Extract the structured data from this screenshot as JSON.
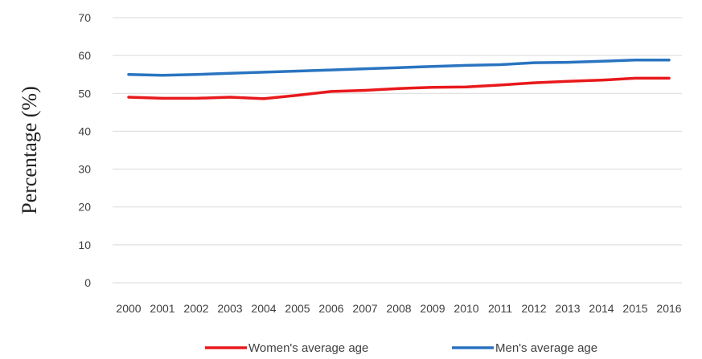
{
  "chart_data": {
    "type": "line",
    "title": "",
    "xlabel": "",
    "ylabel": "Percentage (%)",
    "ylim": [
      0,
      70
    ],
    "yticks": [
      0,
      10,
      20,
      30,
      40,
      50,
      60,
      70
    ],
    "grid": true,
    "legend_position": "bottom",
    "categories": [
      "2000",
      "2001",
      "2002",
      "2003",
      "2004",
      "2005",
      "2006",
      "2007",
      "2008",
      "2009",
      "2010",
      "2011",
      "2012",
      "2013",
      "2014",
      "2015",
      "2016"
    ],
    "series": [
      {
        "name": "Women's average age",
        "color": "#e8191c",
        "values": [
          49.0,
          48.7,
          48.7,
          49.0,
          48.6,
          49.5,
          50.5,
          50.8,
          51.3,
          51.6,
          51.7,
          52.2,
          52.8,
          53.2,
          53.5,
          54.0,
          54.0
        ]
      },
      {
        "name": "Men's average age",
        "color": "#2a74c0",
        "values": [
          55.0,
          54.8,
          55.0,
          55.3,
          55.6,
          55.9,
          56.2,
          56.5,
          56.8,
          57.1,
          57.4,
          57.6,
          58.1,
          58.2,
          58.5,
          58.8,
          58.8
        ]
      }
    ]
  }
}
